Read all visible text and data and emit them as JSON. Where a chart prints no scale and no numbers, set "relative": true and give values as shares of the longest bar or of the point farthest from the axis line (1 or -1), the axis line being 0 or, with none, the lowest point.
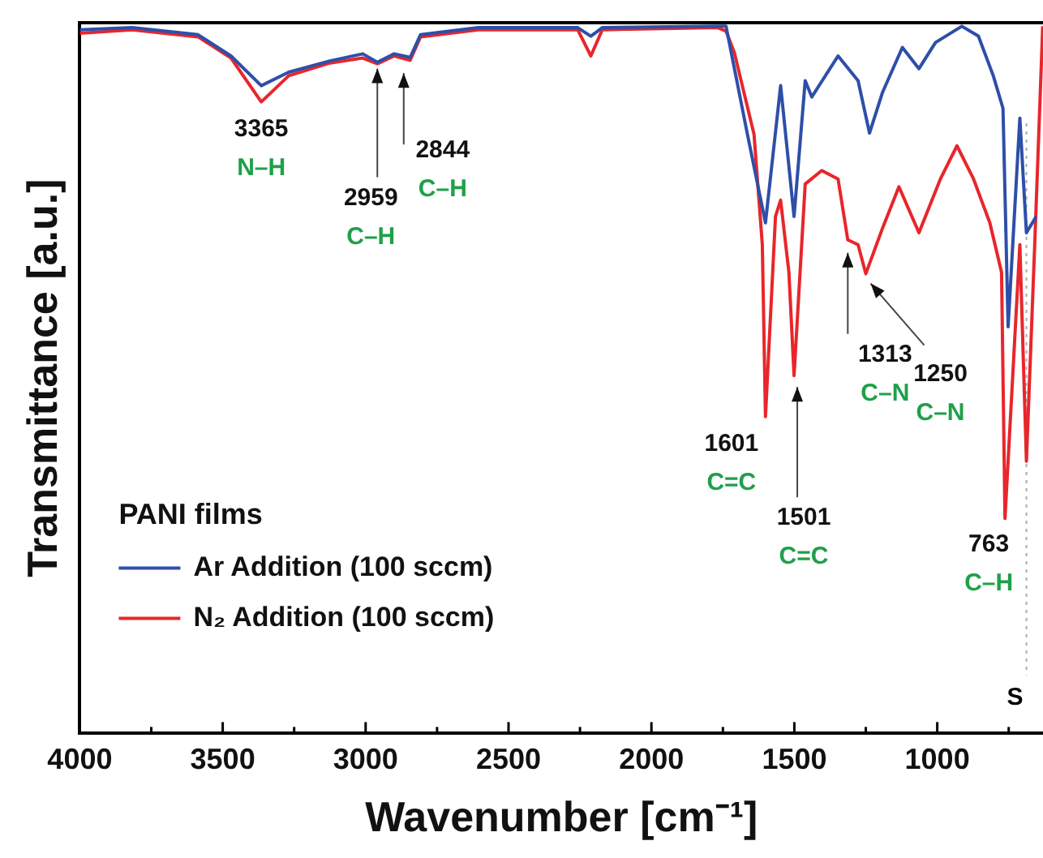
{
  "chart_data": {
    "type": "line",
    "xlabel": "Wavenumber [cm⁻¹]",
    "ylabel": "Transmittance [a.u.]",
    "legend_title": "PANI films",
    "legend": "bottom left",
    "relative": true,
    "grid": false,
    "tick_labels": "x",
    "xlim": [
      4000,
      630
    ],
    "xticks": [
      4000,
      {
        "value": 3750,
        "label": null
      },
      3500,
      {
        "value": 3250,
        "label": null
      },
      3000,
      {
        "value": 2750,
        "label": null
      },
      2500,
      {
        "value": 2250,
        "label": null
      },
      2000,
      {
        "value": 1750,
        "label": null
      },
      1500,
      {
        "value": 1250,
        "label": null
      },
      1000,
      {
        "value": 750,
        "label": null
      }
    ],
    "series": [
      {
        "name": "Ar Addition (100 sccm)",
        "color": "#2e4fa8",
        "x": [
          4000,
          3817,
          3586,
          3471,
          3365,
          3269,
          3125,
          3010,
          2959,
          2900,
          2844,
          2808,
          2606,
          2258,
          2212,
          2172,
          1768,
          1739,
          1664,
          1601,
          1548,
          1501,
          1462,
          1439,
          1347,
          1277,
          1237,
          1191,
          1122,
          1064,
          1006,
          914,
          856,
          804,
          770,
          752,
          711,
          688,
          654
        ],
        "values": [
          0.995,
          0.998,
          0.988,
          0.958,
          0.916,
          0.935,
          0.951,
          0.961,
          0.949,
          0.961,
          0.956,
          0.988,
          0.998,
          0.998,
          0.986,
          0.998,
          1.0,
          1.0,
          0.847,
          0.722,
          0.916,
          0.731,
          0.923,
          0.9,
          0.958,
          0.923,
          0.849,
          0.907,
          0.97,
          0.94,
          0.977,
          1.0,
          0.986,
          0.93,
          0.884,
          0.575,
          0.87,
          0.708,
          0.731
        ]
      },
      {
        "name": "N₂ Addition (100 sccm)",
        "color": "#e8262b",
        "x": [
          4000,
          3817,
          3586,
          3471,
          3365,
          3269,
          3125,
          3010,
          2959,
          2900,
          2844,
          2808,
          2606,
          2258,
          2212,
          2172,
          1768,
          1739,
          1710,
          1641,
          1612,
          1601,
          1566,
          1548,
          1519,
          1501,
          1462,
          1404,
          1347,
          1313,
          1277,
          1250,
          1191,
          1134,
          1064,
          989,
          931,
          873,
          816,
          775,
          763,
          711,
          688,
          659,
          631
        ],
        "values": [
          0.99,
          0.995,
          0.985,
          0.955,
          0.893,
          0.93,
          0.948,
          0.955,
          0.947,
          0.958,
          0.952,
          0.985,
          0.995,
          0.995,
          0.958,
          0.995,
          0.998,
          0.993,
          0.963,
          0.847,
          0.691,
          0.448,
          0.731,
          0.754,
          0.652,
          0.506,
          0.777,
          0.796,
          0.784,
          0.698,
          0.691,
          0.65,
          0.715,
          0.773,
          0.708,
          0.784,
          0.831,
          0.784,
          0.722,
          0.652,
          0.304,
          0.691,
          0.385,
          0.691,
          1.0
        ]
      }
    ],
    "annotations": [
      {
        "text": "3365\nN–H",
        "x": 3365,
        "y": 0.893
      },
      {
        "text": "2959\nC–H",
        "x": 2959,
        "y": 0.947
      },
      {
        "text": "2844\nC–H",
        "x": 2844,
        "y": 0.952
      },
      {
        "text": "1601\nC=C",
        "x": 1601,
        "y": 0.448
      },
      {
        "text": "1501\nC=C",
        "x": 1501,
        "y": 0.506
      },
      {
        "text": "1313\nC–N",
        "x": 1313,
        "y": 0.698
      },
      {
        "text": "1250\nC–N",
        "x": 1250,
        "y": 0.65
      },
      {
        "text": "763\nC–H",
        "x": 763,
        "y": 0.304
      }
    ],
    "ref_lines": [
      {
        "axis": "x",
        "value": 688,
        "label": "S",
        "line_style": "dotted",
        "color": "#aaaaaa"
      }
    ]
  }
}
